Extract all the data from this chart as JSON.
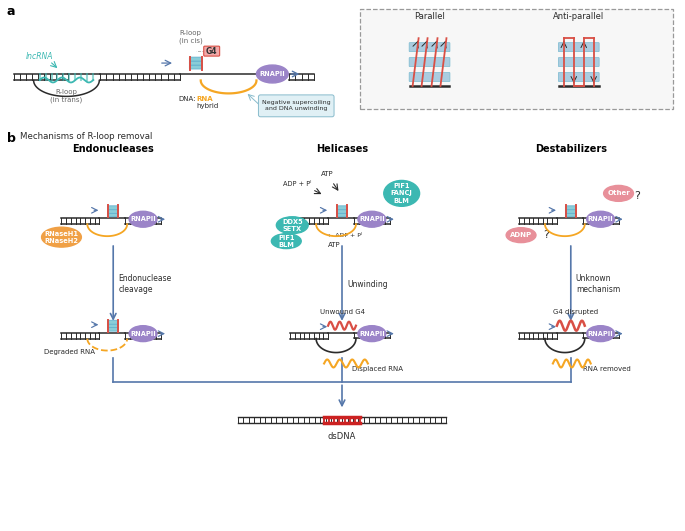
{
  "colors": {
    "dna_dark": "#2B2B2B",
    "rna_hybrid": "#F5A623",
    "g4_blue": "#89CDD8",
    "g4_red": "#D94F45",
    "g4_pink_bg": "#F2AAAA",
    "rnapii_purple": "#9B84C8",
    "rnase_orange": "#F0A045",
    "helicase_teal": "#3CB8B2",
    "destab_pink": "#E8909A",
    "arrow_blue": "#5577AA",
    "lncrna_teal": "#3CB8B2",
    "background": "#FFFFFF",
    "dashed_box": "#999999",
    "parallel_red": "#D94F45",
    "parallel_blue": "#AACCE0",
    "text_dark": "#2B2B2B",
    "text_gray": "#666666",
    "convergence_red": "#CC2222",
    "sc_box_fill": "#E0F0F5",
    "sc_box_edge": "#88BBCC"
  },
  "layout": {
    "fig_w": 6.85,
    "fig_h": 5.31,
    "dpi": 100
  },
  "panel_a": {
    "label": "a",
    "lncrna_label": "lncRNA",
    "rloop_trans_label": "R-loop\n(in trans)",
    "rloop_cis_label": "R-loop\n(in cis)",
    "g4_label": "G4",
    "dna_rna_label": "DNA:RNA\nhybrid",
    "supercoiling_label": "Negative supercoiling\nand DNA unwinding",
    "rnapii_label": "RNAPII",
    "parallel_label": "Parallel",
    "antiparallel_label": "Anti-parallel"
  },
  "panel_b": {
    "label": "b",
    "subtitle": "Mechanisms of R-loop removal",
    "col_labels": [
      "Endonucleases",
      "Helicases",
      "Destabilizers"
    ],
    "rnase_label": "RNaseH1\nRNaseH2",
    "step1_enc": "Endonuclease\ncleavage",
    "step1_hel": "Unwinding",
    "step1_des": "Unknown\nmechanism",
    "degraded_rna": "Degraded RNA",
    "unwound_g4": "Unwound G4",
    "displaced_rna": "Displaced RNA",
    "g4_disrupted": "G4 disrupted",
    "rna_removed": "RNA removed",
    "dsdna": "dsDNA",
    "atp_top": "ATP",
    "adp_pi_top": "ADP + Pᴵ",
    "pif1_fancj_blm": "PIF1\nFANCJ\nBLM",
    "ddx5_setx": "DDX5\nSETX",
    "pif1_blm": "PIF1\nBLM",
    "adp_pi_bot": "ADP + Pᴵ",
    "atp_bot": "ATP",
    "other": "Other",
    "adnp": "ADNP"
  }
}
